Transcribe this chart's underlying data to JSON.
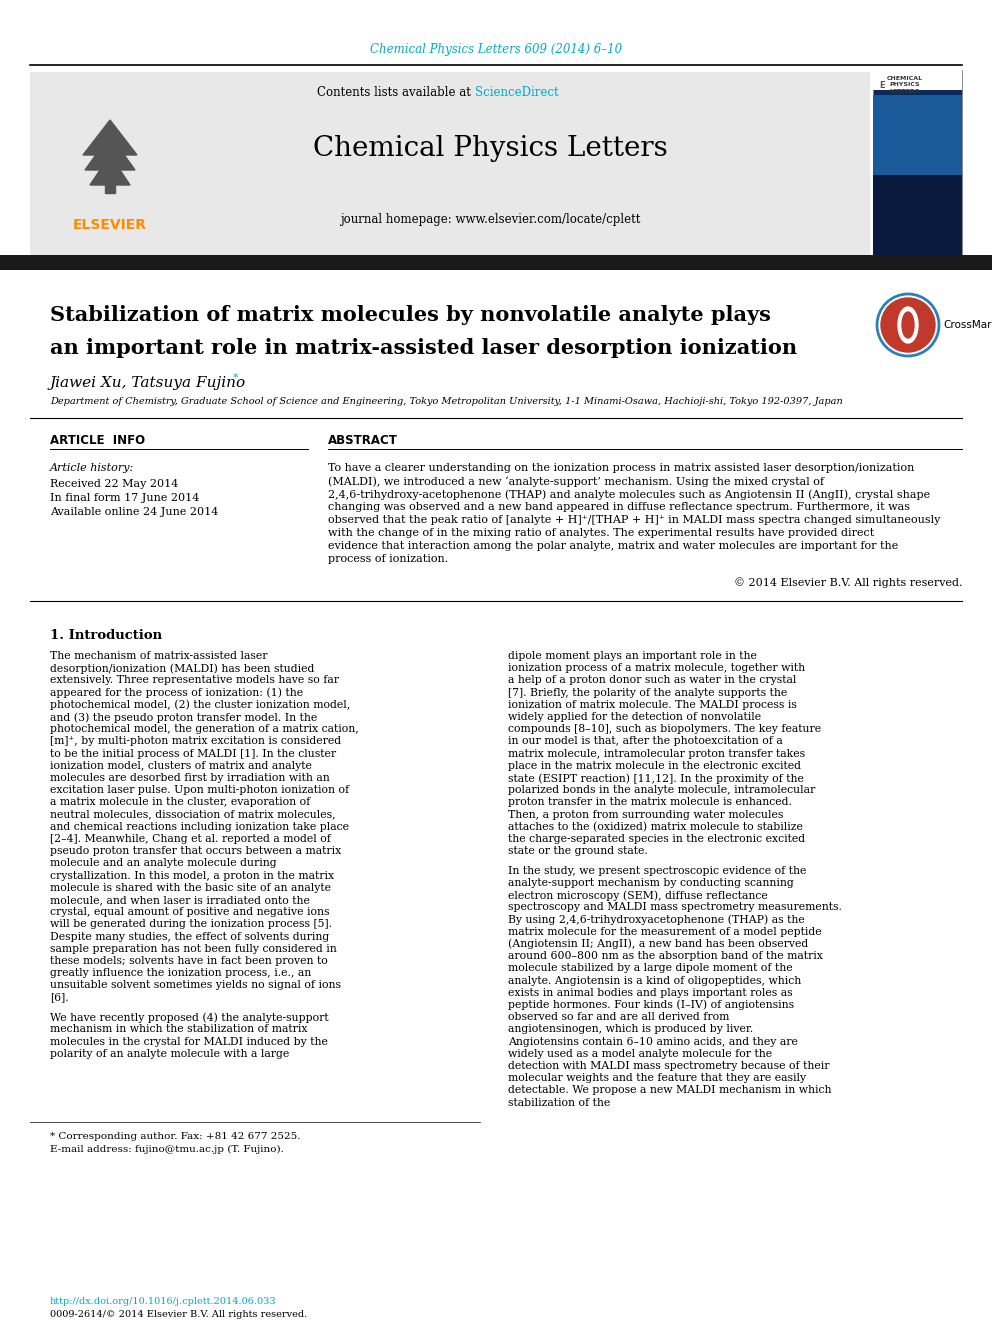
{
  "bg_color": "#ffffff",
  "top_citation": "Chemical Physics Letters 609 (2014) 6–10",
  "citation_color": "#00AACC",
  "journal_title": "Chemical Physics Letters",
  "sciencedirect_color": "#00AACC",
  "journal_homepage": "journal homepage: www.elsevier.com/locate/cplett",
  "elsevier_color": "#FF8C00",
  "header_bg": "#E8E8E8",
  "black_bar_color": "#1a1a1a",
  "paper_title_line1": "Stabilization of matrix molecules by nonvolatile analyte plays",
  "paper_title_line2": "an important role in matrix-assisted laser desorption ionization",
  "authors": "Jiawei Xu, Tatsuya Fujino",
  "affiliation": "Department of Chemistry, Graduate School of Science and Engineering, Tokyo Metropolitan University, 1-1 Minami-Osawa, Hachioji-shi, Tokyo 192-0397, Japan",
  "article_info_header": "ARTICLE  INFO",
  "abstract_header": "ABSTRACT",
  "article_history_label": "Article history:",
  "received": "Received 22 May 2014",
  "final_form": "In final form 17 June 2014",
  "available": "Available online 24 June 2014",
  "abstract_text": "To have a clearer understanding on the ionization process in matrix assisted laser desorption/ionization (MALDI), we introduced a new ‘analyte-support’ mechanism. Using the mixed crystal of 2,4,6-trihydroxy-acetophenone (THAP) and analyte molecules such as Angiotensin II (AngII), crystal shape changing was observed and a new band appeared in diffuse reflectance spectrum. Furthermore, it was observed that the peak ratio of [analyte + H]⁺/[THAP + H]⁺ in MALDI mass spectra changed simultaneously with the change of in the mixing ratio of analytes. The experimental results have provided direct evidence that interaction among the polar analyte, matrix and water molecules are important for the process of ionization.",
  "copyright": "© 2014 Elsevier B.V. All rights reserved.",
  "intro_header": "1. Introduction",
  "intro_text_col1": "The mechanism of matrix-assisted laser desorption/ionization (MALDI) has been studied extensively. Three representative models have so far appeared for the process of ionization: (1) the photochemical model, (2) the cluster ionization model, and (3) the pseudo proton transfer model. In the photochemical model, the generation of a matrix cation, [m]⁺, by multi-photon matrix excitation is considered to be the initial process of MALDI [1]. In the cluster ionization model, clusters of matrix and analyte molecules are desorbed first by irradiation with an excitation laser pulse. Upon multi-photon ionization of a matrix molecule in the cluster, evaporation of neutral molecules, dissociation of matrix molecules, and chemical reactions including ionization take place [2–4]. Meanwhile, Chang et al. reported a model of pseudo proton transfer that occurs between a matrix molecule and an analyte molecule during crystallization. In this model, a proton in the matrix molecule is shared with the basic site of an analyte molecule, and when laser is irradiated onto the crystal, equal amount of positive and negative ions will be generated during the ionization process [5]. Despite many studies, the effect of solvents during sample preparation has not been fully considered in these models; solvents have in fact been proven to greatly influence the ionization process, i.e., an unsuitable solvent sometimes yields no signal of ions [6].\n\nWe have recently proposed (4) the analyte-support mechanism in which the stabilization of matrix molecules in the crystal for MALDI induced by the polarity of an analyte molecule with a large",
  "intro_text_col2": "dipole moment plays an important role in the ionization process of a matrix molecule, together with a help of a proton donor such as water in the crystal [7]. Briefly, the polarity of the analyte supports the ionization of matrix molecule. The MALDI process is widely applied for the detection of nonvolatile compounds [8–10], such as biopolymers. The key feature in our model is that, after the photoexcitation of a matrix molecule, intramolecular proton transfer takes place in the matrix molecule in the electronic excited state (ESIPT reaction) [11,12]. In the proximity of the polarized bonds in the analyte molecule, intramolecular proton transfer in the matrix molecule is enhanced. Then, a proton from surrounding water molecules attaches to the (oxidized) matrix molecule to stabilize the charge-separated species in the electronic excited state or the ground state.\n\nIn the study, we present spectroscopic evidence of the analyte-support mechanism by conducting scanning electron microscopy (SEM), diffuse reflectance spectroscopy and MALDI mass spectrometry measurements. By using 2,4,6-trihydroxyacetophenone (THAP) as the matrix molecule for the measurement of a model peptide (Angiotensin II; AngII), a new band has been observed around 600–800 nm as the absorption band of the matrix molecule stabilized by a large dipole moment of the analyte. Angiotensin is a kind of oligopeptides, which exists in animal bodies and plays important roles as peptide hormones. Four kinds (I–IV) of angiotensins observed so far and are all derived from angiotensinogen, which is produced by liver. Angiotensins contain 6–10 amino acids, and they are widely used as a model analyte molecule for the detection with MALDI mass spectrometry because of their molecular weights and the feature that they are easily detectable. We propose a new MALDI mechanism in which stabilization of the",
  "footnote_star": "* Corresponding author. Fax: +81 42 677 2525.",
  "footnote_email": "E-mail address: fujino@tmu.ac.jp (T. Fujino).",
  "doi_text": "http://dx.doi.org/10.1016/j.cplett.2014.06.033",
  "issn_text": "0009-2614/© 2014 Elsevier B.V. All rights reserved."
}
